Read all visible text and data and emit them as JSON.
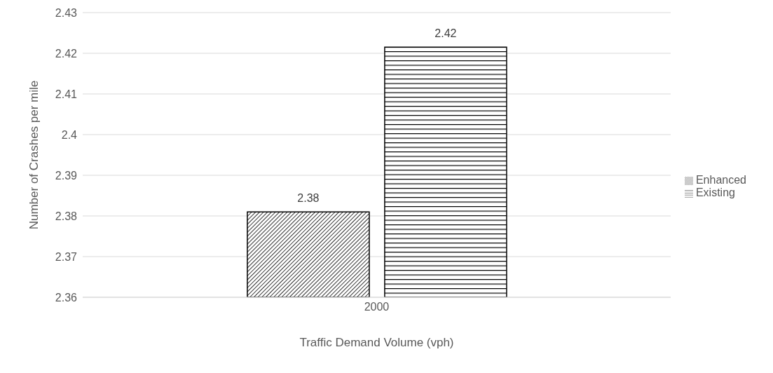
{
  "chart_data": {
    "type": "bar",
    "categories": [
      "2000"
    ],
    "series": [
      {
        "name": "Enhanced",
        "color": "#000000",
        "values": [
          2.381
        ],
        "value_labels": [
          "2.38"
        ]
      },
      {
        "name": "Existing",
        "color": "#000000",
        "values": [
          2.4215
        ],
        "value_labels": [
          "2.42"
        ]
      }
    ],
    "xlabel": "Traffic Demand Volume (vph)",
    "ylabel": "Number of Crashes per mile",
    "ylim": [
      2.36,
      2.43
    ],
    "yticks": [
      2.36,
      2.37,
      2.38,
      2.39,
      2.4,
      2.41,
      2.42,
      2.43
    ],
    "grid": "y",
    "legend": "right"
  }
}
